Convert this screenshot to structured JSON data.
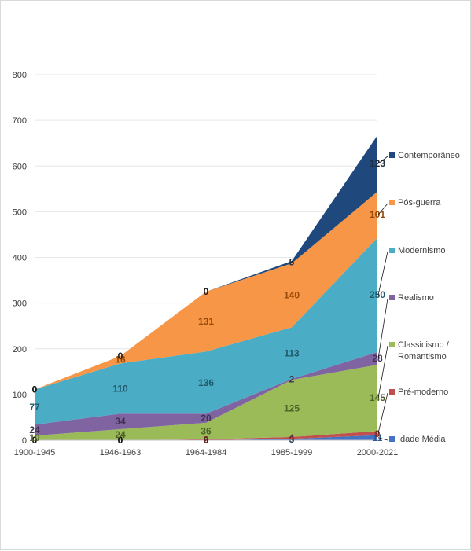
{
  "chart_data": {
    "type": "area",
    "stacked": true,
    "categories": [
      "1900-1945",
      "1946-1963",
      "1964-1984",
      "1985-1999",
      "2000-2021"
    ],
    "ylim": [
      0,
      800
    ],
    "yticks": [
      0,
      100,
      200,
      300,
      400,
      500,
      600,
      700,
      800
    ],
    "grid": true,
    "legend_position": "right",
    "series": [
      {
        "name": "Idade Média",
        "color": "#4472c4",
        "values": [
          0,
          0,
          0,
          3,
          11
        ]
      },
      {
        "name": "Pré-moderno",
        "color": "#c0504d",
        "values": [
          0,
          0,
          2,
          4,
          9
        ]
      },
      {
        "name": "Classicismo / Romantismo",
        "color": "#9bbb59",
        "values": [
          10,
          24,
          36,
          125,
          145
        ]
      },
      {
        "name": "Realismo",
        "color": "#8064a2",
        "values": [
          24,
          34,
          20,
          2,
          28
        ]
      },
      {
        "name": "Modernismo",
        "color": "#4bacc6",
        "values": [
          77,
          110,
          136,
          113,
          250
        ]
      },
      {
        "name": "Pós-guerra",
        "color": "#f79646",
        "values": [
          0,
          16,
          131,
          140,
          101
        ]
      },
      {
        "name": "Contemporâneo",
        "color": "#1f497d",
        "values": [
          0,
          0,
          0,
          5,
          123
        ]
      }
    ]
  }
}
